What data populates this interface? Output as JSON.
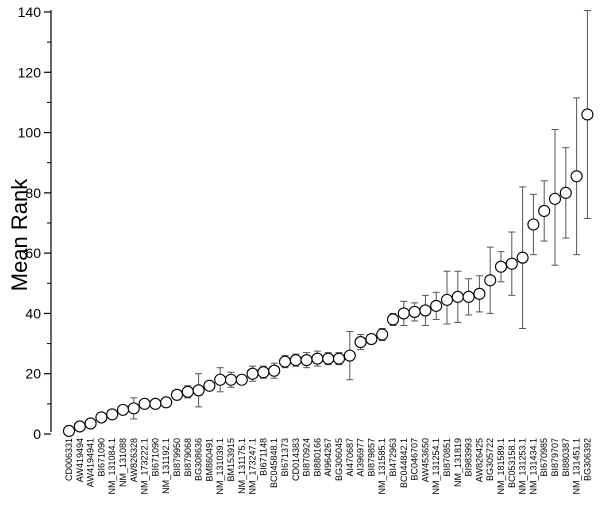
{
  "chart_data": {
    "type": "scatter",
    "title": "",
    "xlabel": "",
    "ylabel": "Mean Rank",
    "ylim": [
      0,
      140
    ],
    "yticks": [
      0,
      20,
      40,
      60,
      80,
      100,
      120,
      140
    ],
    "grid": false,
    "legend": "none",
    "marker": "open-circle",
    "error_bars": true,
    "categories": [
      "CD006331",
      "AW419494",
      "AW4194941",
      "BI671090",
      "NM_131084.1",
      "NM_131088",
      "AW826328",
      "NM_173222.1",
      "BI671090",
      "NM_131192.1",
      "BI879950",
      "BI879068",
      "BG308636",
      "BM860491",
      "NM_131039.1",
      "BM153915",
      "NM_131175.1",
      "NM_173247.1",
      "BI671148",
      "BC045848.1",
      "BI671373",
      "CD014383",
      "BI870924",
      "BI880166",
      "AI964267",
      "BG306045",
      "AI470687",
      "AI396977",
      "BI879857",
      "NM_131585.1",
      "BI472963",
      "BC044842.1",
      "BC046707",
      "AW453650",
      "NM_131254.1",
      "BI870851",
      "NM_131819",
      "BI983993",
      "AW826425",
      "BG305722",
      "NM_181589.1",
      "BC053158.1",
      "NM_131253.1",
      "NM_131434.1",
      "BI670985",
      "BI879707",
      "BI880387",
      "NM_131451.1",
      "BG306392"
    ],
    "values": [
      1,
      2.5,
      3.5,
      5.5,
      6.5,
      8,
      8.5,
      10,
      10,
      10.5,
      13,
      14,
      14.5,
      16,
      18,
      18,
      18,
      20,
      20.5,
      21,
      24,
      24.5,
      24.5,
      25,
      25,
      25,
      26,
      30.5,
      31.5,
      33,
      38,
      40,
      40.5,
      41,
      42.5,
      44.5,
      45.5,
      45.5,
      46.5,
      51,
      55.5,
      56.5,
      58.5,
      69.5,
      74,
      78,
      80,
      85.5,
      106
    ],
    "error_lower": [
      0.3,
      0.8,
      0.8,
      0.8,
      1,
      1.5,
      3.5,
      1,
      1.5,
      1.5,
      1.5,
      2,
      5.5,
      1.5,
      4,
      2.5,
      1.5,
      2.5,
      2,
      2.5,
      2,
      2,
      2.5,
      2.5,
      2,
      2,
      8,
      2.5,
      1.5,
      2,
      2,
      4,
      3,
      5,
      4.5,
      8,
      8.5,
      6,
      6,
      11,
      5,
      10.5,
      23.5,
      10,
      10,
      22,
      15,
      26,
      34.5
    ],
    "error_upper": [
      0.3,
      0.8,
      0.8,
      0.8,
      1,
      1.5,
      3.5,
      1,
      1.5,
      1.5,
      1.5,
      2,
      5.5,
      1.5,
      4,
      2.5,
      1.5,
      2.5,
      2,
      2.5,
      2,
      2,
      2.5,
      2.5,
      2,
      2,
      8,
      2.5,
      1.5,
      2,
      2,
      4,
      3,
      5,
      4.5,
      9.5,
      8.5,
      6,
      6,
      11,
      5,
      10.5,
      23.5,
      10,
      10,
      23,
      15,
      26,
      34.5
    ]
  }
}
